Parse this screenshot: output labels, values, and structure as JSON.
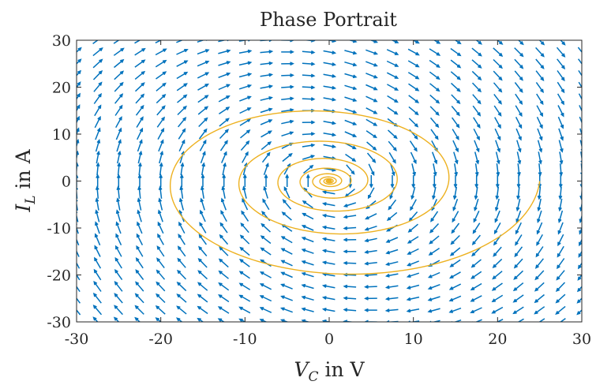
{
  "chart_data": {
    "type": "quiver",
    "title": "Phase Portrait",
    "xlabel": {
      "var": "V",
      "sub": "C",
      "rest": " in V"
    },
    "ylabel": {
      "var": "I",
      "sub": "L",
      "rest": " in A"
    },
    "xlim": [
      -30,
      30
    ],
    "ylim": [
      -30,
      30
    ],
    "xticks": [
      -30,
      -20,
      -10,
      0,
      10,
      20,
      30
    ],
    "yticks": [
      -30,
      -20,
      -10,
      0,
      10,
      20,
      30
    ],
    "xtick_labels": [
      "-30",
      "-20",
      "-10",
      "0",
      "10",
      "20",
      "30"
    ],
    "ytick_labels": [
      "-30",
      "-20",
      "-10",
      "0",
      "10",
      "20",
      "30"
    ],
    "grid": false,
    "series": [
      {
        "kind": "vector-field",
        "color": "#0072BD",
        "grid_x": [
          -30,
          -27.5,
          -25,
          -22.5,
          -20,
          -17.5,
          -15,
          -12.5,
          -10,
          -7.5,
          -5,
          -2.5,
          0,
          2.5,
          5,
          7.5,
          10,
          12.5,
          15,
          17.5,
          20,
          22.5,
          25,
          27.5,
          30
        ],
        "grid_y": [
          -30,
          -27.5,
          -25,
          -22.5,
          -20,
          -17.5,
          -15,
          -12.5,
          -10,
          -7.5,
          -5,
          -2.5,
          0,
          2.5,
          5,
          7.5,
          10,
          12.5,
          15,
          17.5,
          20,
          22.5,
          25,
          27.5,
          30
        ],
        "field": {
          "dVc_dt": [
            0,
            1
          ],
          "dIL_dt": [
            -1,
            -0.18
          ]
        }
      },
      {
        "kind": "trajectory",
        "color": "#EDB120",
        "start": [
          25,
          0
        ],
        "end_near": [
          0,
          0
        ],
        "system": {
          "dVc_dt": [
            -0.06,
            1.1
          ],
          "dIL_dt": [
            -0.91,
            -0.12
          ]
        }
      }
    ]
  }
}
